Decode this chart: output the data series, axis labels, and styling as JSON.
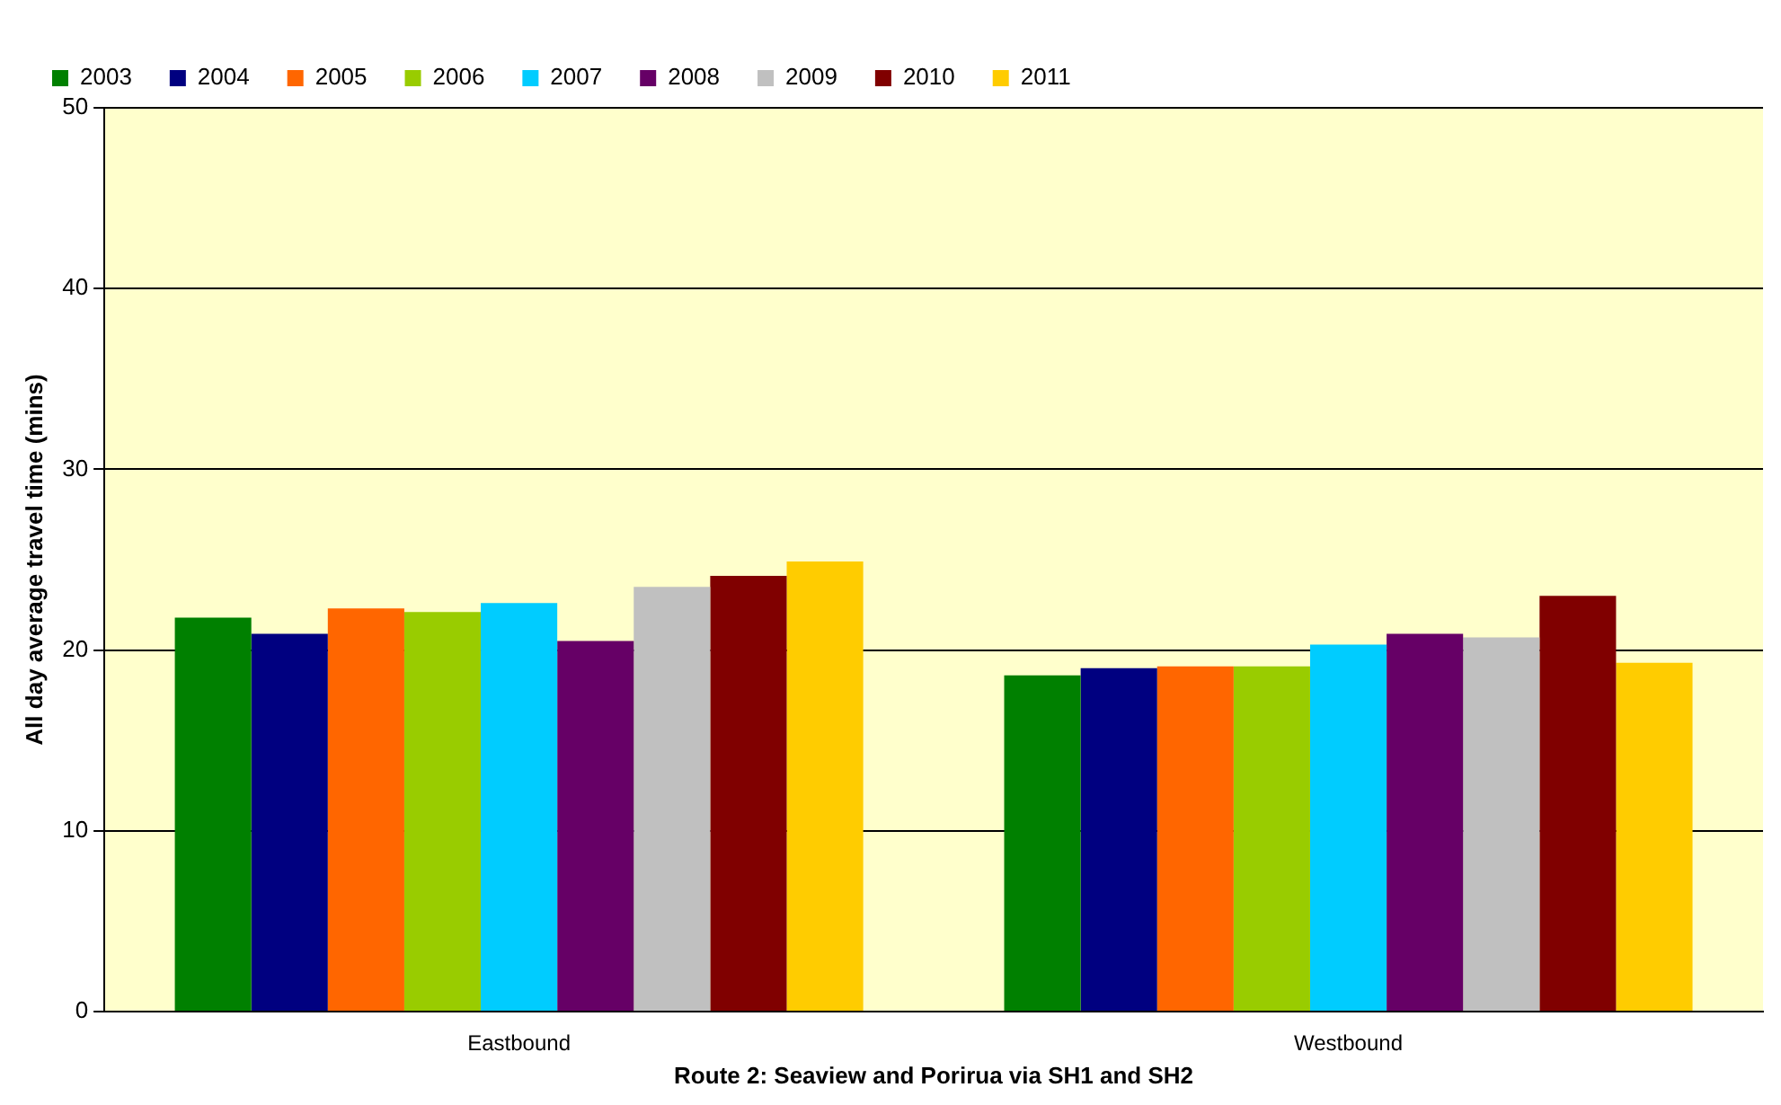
{
  "chart_data": {
    "type": "bar",
    "xlabel": "Route 2: Seaview and Porirua via SH1 and SH2",
    "ylabel": "All day average travel time (mins)",
    "categories": [
      "Eastbound",
      "Westbound"
    ],
    "series": [
      {
        "name": "2003",
        "color": "#008000",
        "values": [
          21.8,
          18.6
        ]
      },
      {
        "name": "2004",
        "color": "#000080",
        "values": [
          20.9,
          19.0
        ]
      },
      {
        "name": "2005",
        "color": "#ff6600",
        "values": [
          22.3,
          19.1
        ]
      },
      {
        "name": "2006",
        "color": "#99cc00",
        "values": [
          22.1,
          19.1
        ]
      },
      {
        "name": "2007",
        "color": "#00ccff",
        "values": [
          22.6,
          20.3
        ]
      },
      {
        "name": "2008",
        "color": "#660066",
        "values": [
          20.5,
          20.9
        ]
      },
      {
        "name": "2009",
        "color": "#c0c0c0",
        "values": [
          23.5,
          20.7
        ]
      },
      {
        "name": "2010",
        "color": "#800000",
        "values": [
          24.1,
          23.0
        ]
      },
      {
        "name": "2011",
        "color": "#ffcc00",
        "values": [
          24.9,
          19.3
        ]
      }
    ],
    "ylim": [
      0,
      50
    ],
    "yticks": [
      0,
      10,
      20,
      30,
      40,
      50
    ],
    "grid": "y",
    "legend": "top left"
  }
}
